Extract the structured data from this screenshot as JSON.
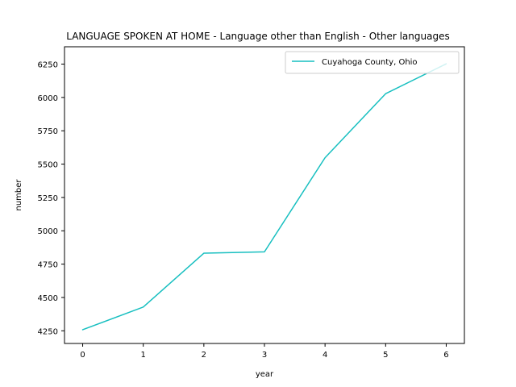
{
  "chart_data": {
    "type": "line",
    "title": "LANGUAGE SPOKEN AT HOME - Language other than English - Other languages",
    "xlabel": "year",
    "ylabel": "number",
    "x": [
      0,
      1,
      2,
      3,
      4,
      5,
      6
    ],
    "xticks": [
      "0",
      "1",
      "2",
      "3",
      "4",
      "5",
      "6"
    ],
    "yticks": [
      "4250",
      "4500",
      "4750",
      "5000",
      "5250",
      "5500",
      "5750",
      "6000",
      "6250"
    ],
    "xlim": [
      -0.3,
      6.3
    ],
    "ylim": [
      4155,
      6380
    ],
    "grid": false,
    "legend_position": "upper right",
    "series": [
      {
        "name": "Cuyahoga County, Ohio",
        "color": "#17bfc0",
        "values": [
          4258,
          4428,
          4832,
          4842,
          5548,
          6028,
          6252
        ]
      }
    ]
  }
}
